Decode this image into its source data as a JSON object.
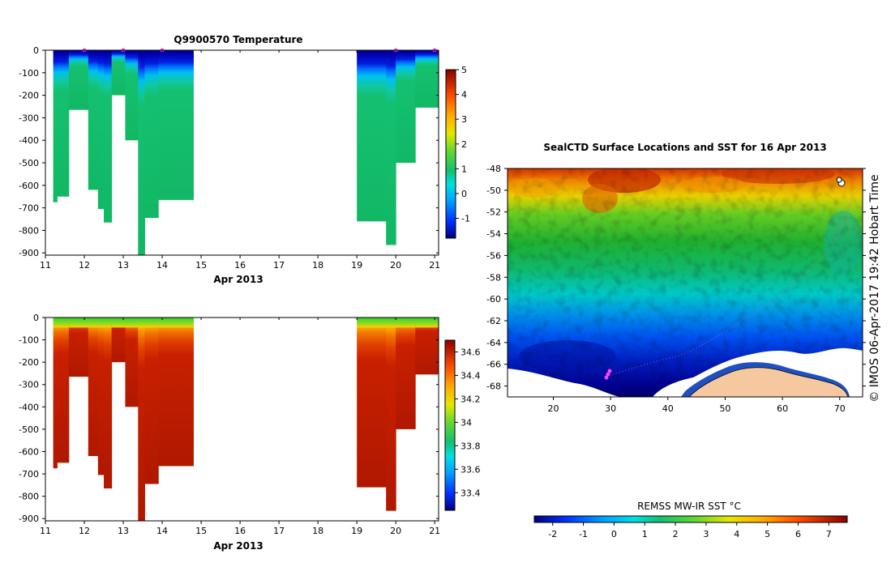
{
  "colors": {
    "jet": [
      "#00007f",
      "#0000d0",
      "#0040ff",
      "#0090ff",
      "#00d4ff",
      "#22d0a0",
      "#14b85a",
      "#33c840",
      "#8cdc28",
      "#e0e000",
      "#ffc800",
      "#ff9000",
      "#f05000",
      "#d02000",
      "#a00000"
    ],
    "land": "#f5c8a0",
    "track": "#ff40ff"
  },
  "chart_data": [
    {
      "id": "temperature",
      "type": "heatmap",
      "title": "Q9900570  Temperature",
      "xlabel": "Apr 2013",
      "ylabel": "",
      "xlim": [
        11,
        21.1
      ],
      "ylim": [
        -910,
        0
      ],
      "xticks": [
        "11",
        "12",
        "13",
        "14",
        "15",
        "16",
        "17",
        "18",
        "19",
        "20",
        "21"
      ],
      "yticks": [
        "0",
        "-100",
        "-200",
        "-300",
        "-400",
        "-500",
        "-600",
        "-700",
        "-800",
        "-900"
      ],
      "colorbar": {
        "min": -1.8,
        "max": 5,
        "ticks": [
          "-1",
          "0",
          "1",
          "2",
          "3",
          "4",
          "5"
        ]
      },
      "profiles": [
        {
          "x0": 11.2,
          "x1": 11.3,
          "depth": 675
        },
        {
          "x0": 11.3,
          "x1": 11.6,
          "depth": 650
        },
        {
          "x0": 11.6,
          "x1": 12.1,
          "depth": 265
        },
        {
          "x0": 12.1,
          "x1": 12.35,
          "depth": 620
        },
        {
          "x0": 12.35,
          "x1": 12.5,
          "depth": 705
        },
        {
          "x0": 12.5,
          "x1": 12.7,
          "depth": 765
        },
        {
          "x0": 12.7,
          "x1": 13.05,
          "depth": 200
        },
        {
          "x0": 13.05,
          "x1": 13.38,
          "depth": 400
        },
        {
          "x0": 13.38,
          "x1": 13.55,
          "depth": 910
        },
        {
          "x0": 13.55,
          "x1": 13.9,
          "depth": 745
        },
        {
          "x0": 13.9,
          "x1": 14.8,
          "depth": 665
        },
        {
          "x0": 19.0,
          "x1": 19.75,
          "depth": 760
        },
        {
          "x0": 19.75,
          "x1": 20.0,
          "depth": 865
        },
        {
          "x0": 20.0,
          "x1": 20.5,
          "depth": 500
        },
        {
          "x0": 20.5,
          "x1": 21.1,
          "depth": 255
        }
      ],
      "markers_x": [
        12.0,
        13.0,
        14.0,
        20.0,
        21.0
      ]
    },
    {
      "id": "salinity",
      "type": "heatmap",
      "title": "",
      "xlabel": "Apr 2013",
      "ylabel": "",
      "xlim": [
        11,
        21.1
      ],
      "ylim": [
        -910,
        0
      ],
      "xticks": [
        "11",
        "12",
        "13",
        "14",
        "15",
        "16",
        "17",
        "18",
        "19",
        "20",
        "21"
      ],
      "yticks": [
        "0",
        "-100",
        "-200",
        "-300",
        "-400",
        "-500",
        "-600",
        "-700",
        "-800",
        "-900"
      ],
      "colorbar": {
        "min": 33.25,
        "max": 34.7,
        "ticks": [
          "33.4",
          "33.6",
          "33.8",
          "34",
          "34.2",
          "34.4",
          "34.6"
        ]
      }
    },
    {
      "id": "sst_map",
      "type": "heatmap",
      "title": "SealCTD Surface Locations and SST for 16 Apr 2013",
      "xlabel": "",
      "xlim": [
        12,
        74
      ],
      "ylim": [
        -69,
        -48
      ],
      "xticks": [
        "20",
        "30",
        "40",
        "50",
        "60",
        "70"
      ],
      "yticks": [
        "-48",
        "-50",
        "-52",
        "-54",
        "-56",
        "-58",
        "-60",
        "-62",
        "-64",
        "-66",
        "-68"
      ],
      "colorbar": {
        "label": "REMSS MW-IR SST °C",
        "min": -2.6,
        "max": 7.6,
        "ticks": [
          "-2",
          "-1",
          "0",
          "1",
          "2",
          "3",
          "4",
          "5",
          "6",
          "7"
        ]
      }
    }
  ],
  "credit": "© IMOS 06-Apr-2017 19:42 Hobart Time"
}
